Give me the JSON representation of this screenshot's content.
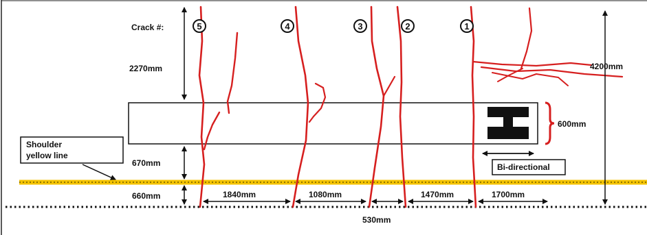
{
  "header": {
    "crack_label": "Crack #:"
  },
  "cracks": [
    {
      "id": "5"
    },
    {
      "id": "4"
    },
    {
      "id": "3"
    },
    {
      "id": "2"
    },
    {
      "id": "1"
    }
  ],
  "dimensions": {
    "top_gap": "2270mm",
    "total_height": "4200mm",
    "slab_width": "600mm",
    "gap_to_yellow_line": "670mm",
    "gap_to_edge": "660mm",
    "spacing_5_4": "1840mm",
    "spacing_4_3": "1080mm",
    "spacing_3_2": "530mm",
    "spacing_2_1": "1470mm",
    "spacing_1_end": "1700mm"
  },
  "labels": {
    "shoulder_line1": "Shoulder",
    "shoulder_line2": "yellow line",
    "bidirectional": "Bi-directional"
  },
  "colors": {
    "crack": "#d61f1f",
    "yellow_line": "#f4c300",
    "ink": "#111111"
  }
}
